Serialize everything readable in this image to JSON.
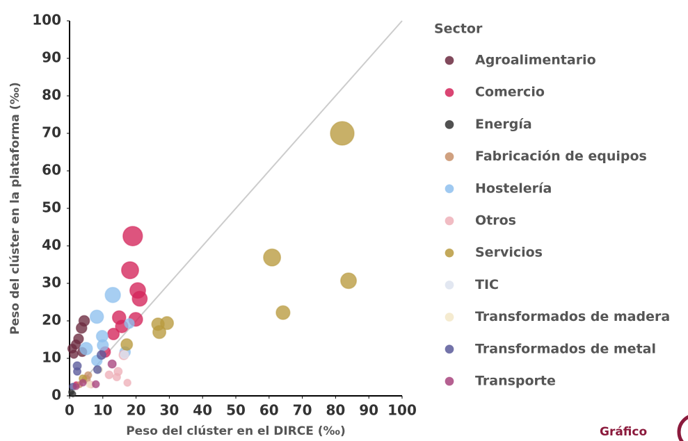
{
  "chart_data": {
    "type": "scatter",
    "x_label": "Peso del clúster en el DIRCE (‰)",
    "y_label": "Peso del clúster en la plataforma (‰)",
    "legend_title": "Sector",
    "legend_position": "right",
    "footer": "Gráfico",
    "xlim": [
      0,
      100
    ],
    "ylim": [
      0,
      100
    ],
    "xticks": [
      0,
      10,
      20,
      30,
      40,
      50,
      60,
      70,
      80,
      90,
      100
    ],
    "yticks": [
      0,
      10,
      20,
      30,
      40,
      50,
      60,
      70,
      80,
      90,
      100
    ],
    "series": [
      {
        "name": "Agroalimentario",
        "color": "#6b2a3f",
        "x": [
          4.4,
          3.6,
          2.7,
          1.9,
          0.8,
          3.8,
          1.3
        ],
        "y": [
          20,
          18.1,
          15.2,
          13.7,
          12.6,
          11.7,
          11.1
        ],
        "sizes": [
          20,
          20,
          17,
          15,
          14,
          15,
          12
        ]
      },
      {
        "name": "Comercio",
        "color": "#d4245a",
        "x": [
          19,
          18.2,
          20.5,
          21.1,
          14.9,
          19.9,
          15.7,
          13.2,
          10.7,
          2
        ],
        "y": [
          42.6,
          33.5,
          28.1,
          25.9,
          20.9,
          20.4,
          18.5,
          16.5,
          11.7,
          3
        ],
        "sizes": [
          68,
          52,
          44,
          40,
          32,
          34,
          28,
          24,
          20,
          6
        ]
      },
      {
        "name": "Energía",
        "color": "#333333",
        "x": [
          1,
          0.5
        ],
        "y": [
          0.5,
          1
        ],
        "sizes": [
          6,
          5
        ]
      },
      {
        "name": "Fabricación de equipos",
        "color": "#c8906a",
        "x": [
          5,
          5.6,
          3
        ],
        "y": [
          4.4,
          5.5,
          3
        ],
        "sizes": [
          12,
          9,
          7
        ]
      },
      {
        "name": "Hostelería",
        "color": "#8ec0ee",
        "x": [
          13,
          8.2,
          9.8,
          10,
          5,
          8.2,
          16.7,
          18
        ],
        "y": [
          26.9,
          21.1,
          15.9,
          13.5,
          12.6,
          9.4,
          11.7,
          19.3
        ],
        "sizes": [
          42,
          32,
          24,
          22,
          28,
          20,
          20,
          17
        ]
      },
      {
        "name": "Otros",
        "color": "#eeb0b8",
        "x": [
          16.3,
          14.6,
          14.2,
          11.9,
          17.4,
          6.5
        ],
        "y": [
          10.9,
          6.5,
          5,
          5.6,
          3.5,
          3
        ],
        "sizes": [
          16,
          12,
          10,
          11,
          9,
          8
        ]
      },
      {
        "name": "Servicios",
        "color": "#b89a3e",
        "x": [
          82,
          60.9,
          83.9,
          64.2,
          26.6,
          29.3,
          27,
          17.2,
          4
        ],
        "y": [
          70,
          36.9,
          30.7,
          22.2,
          19.1,
          19.4,
          17,
          13.7,
          4.6
        ],
        "sizes": [
          100,
          52,
          44,
          34,
          28,
          30,
          30,
          24,
          10
        ]
      },
      {
        "name": "TIC",
        "color": "#dde3ef",
        "x": [
          16.5
        ],
        "y": [
          11
        ],
        "sizes": [
          12
        ]
      },
      {
        "name": "Transformados de madera",
        "color": "#f3e8c8",
        "x": [
          6,
          9
        ],
        "y": [
          3,
          7
        ],
        "sizes": [
          7,
          7
        ]
      },
      {
        "name": "Transformados de metal",
        "color": "#5a5a9a",
        "x": [
          2.3,
          2.3,
          9.6,
          8.4,
          1
        ],
        "y": [
          8,
          6.5,
          10.9,
          7,
          2.5
        ],
        "sizes": [
          12,
          10,
          14,
          11,
          8
        ]
      },
      {
        "name": "Transporte",
        "color": "#a8447e",
        "x": [
          12.8,
          7.9,
          4,
          2
        ],
        "y": [
          8.5,
          3.1,
          3.5,
          2.5
        ],
        "sizes": [
          12,
          9,
          8,
          7
        ]
      }
    ]
  }
}
